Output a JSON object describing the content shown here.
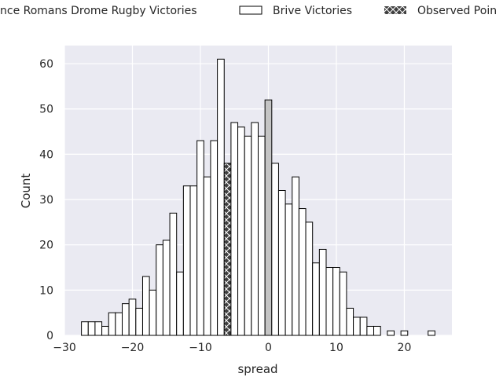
{
  "chart_data": {
    "type": "bar",
    "xlabel": "spread",
    "ylabel": "Count",
    "xlim": [
      -30,
      27
    ],
    "ylim": [
      0,
      64
    ],
    "xticks": [
      -30,
      -20,
      -10,
      0,
      10,
      20
    ],
    "yticks": [
      0,
      10,
      20,
      30,
      40,
      50,
      60
    ],
    "xtick_labels": [
      "−30",
      "−20",
      "−10",
      "0",
      "10",
      "20"
    ],
    "ytick_labels": [
      "0",
      "10",
      "20",
      "30",
      "40",
      "50",
      "60"
    ],
    "grid": true,
    "legend_position": "top",
    "legend": [
      {
        "label": "nce Romans Drome Rugby Victories",
        "color": "#c4c4c4",
        "hatch": false
      },
      {
        "label": "Brive Victories",
        "color": "#ffffff",
        "hatch": false
      },
      {
        "label": "Observed Poin",
        "color": "#404040",
        "hatch": true
      }
    ],
    "bin_width": 1,
    "x": [
      -27,
      -26,
      -25,
      -24,
      -23,
      -22,
      -21,
      -20,
      -19,
      -18,
      -17,
      -16,
      -15,
      -14,
      -13,
      -12,
      -11,
      -10,
      -9,
      -8,
      -7,
      -6,
      -5,
      -4,
      -3,
      -2,
      -1,
      0,
      1,
      2,
      3,
      4,
      5,
      6,
      7,
      8,
      9,
      10,
      11,
      12,
      13,
      14,
      15,
      16,
      17,
      18,
      19,
      20,
      21,
      22,
      23,
      24
    ],
    "values": [
      3,
      3,
      3,
      2,
      5,
      5,
      7,
      8,
      6,
      13,
      10,
      20,
      21,
      27,
      14,
      33,
      33,
      43,
      35,
      43,
      61,
      38,
      47,
      46,
      44,
      47,
      44,
      52,
      38,
      32,
      29,
      35,
      28,
      25,
      16,
      19,
      15,
      15,
      14,
      6,
      4,
      4,
      2,
      2,
      0,
      1,
      0,
      1,
      0,
      0,
      0,
      1
    ],
    "highlight": {
      "gray_bin": 0,
      "observed_bin": -6
    },
    "colors": {
      "background": "#eaeaf2",
      "grid": "#ffffff",
      "bar": "#ffffff",
      "gray_bar": "#c4c4c4",
      "observed": "#404040",
      "edge": "#000000"
    }
  }
}
